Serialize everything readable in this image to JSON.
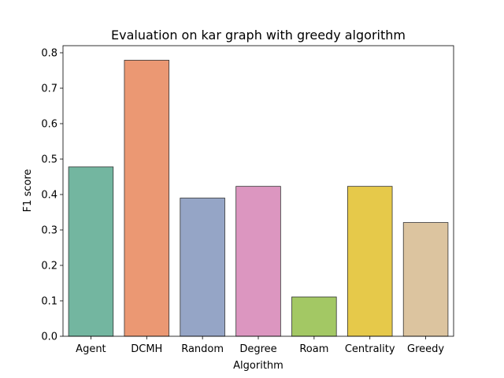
{
  "chart_data": {
    "type": "bar",
    "title": "Evaluation on kar graph with greedy algorithm",
    "xlabel": "Algorithm",
    "ylabel": "F1 score",
    "categories": [
      "Agent",
      "DCMH",
      "Random",
      "Degree",
      "Roam",
      "Centrality",
      "Greedy"
    ],
    "values": [
      0.478,
      0.779,
      0.39,
      0.423,
      0.111,
      0.423,
      0.321
    ],
    "colors": [
      "#73b6a0",
      "#eb9873",
      "#95a5c6",
      "#dc96c0",
      "#a3c864",
      "#e6c94a",
      "#dcc49f"
    ],
    "ylim": [
      0,
      0.82
    ],
    "yticks": [
      "0.0",
      "0.1",
      "0.2",
      "0.3",
      "0.4",
      "0.5",
      "0.6",
      "0.7",
      "0.8"
    ],
    "grid": false
  }
}
